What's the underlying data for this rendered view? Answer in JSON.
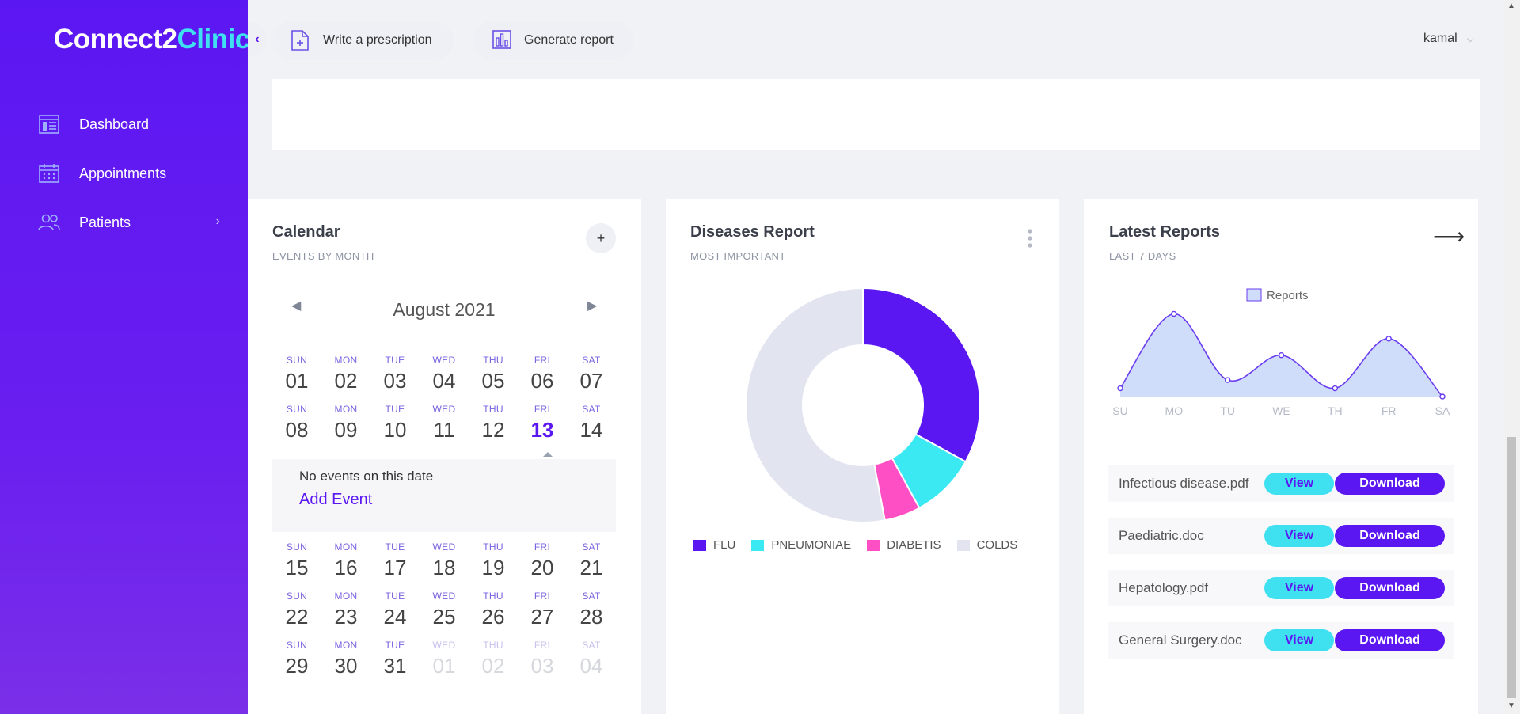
{
  "brand": {
    "name_part1": "Connect2",
    "name_part2": "Clinic"
  },
  "sidebar": {
    "items": [
      {
        "label": "Dashboard",
        "icon": "dashboard-icon"
      },
      {
        "label": "Appointments",
        "icon": "calendar-icon"
      },
      {
        "label": "Patients",
        "icon": "users-icon"
      }
    ]
  },
  "topbar": {
    "write_prescription": "Write a prescription",
    "generate_report": "Generate report",
    "user_name": "kamal"
  },
  "calendar": {
    "title": "Calendar",
    "subtitle": "EVENTS BY MONTH",
    "month": "August 2021",
    "add_button": "+",
    "weeks": [
      [
        [
          "SUN",
          "01"
        ],
        [
          "MON",
          "02"
        ],
        [
          "TUE",
          "03"
        ],
        [
          "WED",
          "04"
        ],
        [
          "THU",
          "05"
        ],
        [
          "FRI",
          "06"
        ],
        [
          "SAT",
          "07"
        ]
      ],
      [
        [
          "SUN",
          "08"
        ],
        [
          "MON",
          "09"
        ],
        [
          "TUE",
          "10"
        ],
        [
          "WED",
          "11"
        ],
        [
          "THU",
          "12"
        ],
        [
          "FRI",
          "13"
        ],
        [
          "SAT",
          "14"
        ]
      ],
      [
        [
          "SUN",
          "15"
        ],
        [
          "MON",
          "16"
        ],
        [
          "TUE",
          "17"
        ],
        [
          "WED",
          "18"
        ],
        [
          "THU",
          "19"
        ],
        [
          "FRI",
          "20"
        ],
        [
          "SAT",
          "21"
        ]
      ],
      [
        [
          "SUN",
          "22"
        ],
        [
          "MON",
          "23"
        ],
        [
          "TUE",
          "24"
        ],
        [
          "WED",
          "25"
        ],
        [
          "THU",
          "26"
        ],
        [
          "FRI",
          "27"
        ],
        [
          "SAT",
          "28"
        ]
      ],
      [
        [
          "SUN",
          "29"
        ],
        [
          "MON",
          "30"
        ],
        [
          "TUE",
          "31"
        ],
        [
          "WED",
          "01"
        ],
        [
          "THU",
          "02"
        ],
        [
          "FRI",
          "03"
        ],
        [
          "SAT",
          "04"
        ]
      ]
    ],
    "selected_day": "13",
    "no_events": "No events on this date",
    "add_event": "Add Event"
  },
  "diseases": {
    "title": "Diseases Report",
    "subtitle": "MOST IMPORTANT"
  },
  "latest_reports": {
    "title": "Latest Reports",
    "subtitle": "LAST 7 DAYS",
    "arrow": "⟶",
    "files": [
      {
        "name": "Infectious disease.pdf",
        "view": "View",
        "download": "Download"
      },
      {
        "name": "Paediatric.doc",
        "view": "View",
        "download": "Download"
      },
      {
        "name": "Hepatology.pdf",
        "view": "View",
        "download": "Download"
      },
      {
        "name": "General Surgery.doc",
        "view": "View",
        "download": "Download"
      }
    ]
  },
  "colors": {
    "primary": "#5b17f2",
    "cyan": "#3fe0f0",
    "pink": "#ff4fc4",
    "grey": "#e2e5f0"
  },
  "chart_data": [
    {
      "type": "pie",
      "variant": "donut",
      "categories": [
        "FLU",
        "PNEUMONIAE",
        "DIABETIS",
        "COLDS"
      ],
      "values": [
        33,
        9,
        5,
        53
      ],
      "colors": [
        "#5b17f2",
        "#3ae9f2",
        "#ff4fc4",
        "#e2e5f0"
      ],
      "legend_position": "bottom"
    },
    {
      "type": "area",
      "categories": [
        "SU",
        "MO",
        "TU",
        "WE",
        "TH",
        "FR",
        "SA"
      ],
      "series": [
        {
          "name": "Reports",
          "values": [
            1,
            10,
            2,
            5,
            1,
            7,
            0
          ]
        }
      ],
      "ylim": [
        0,
        11
      ],
      "legend_position": "top",
      "grid": false
    }
  ]
}
